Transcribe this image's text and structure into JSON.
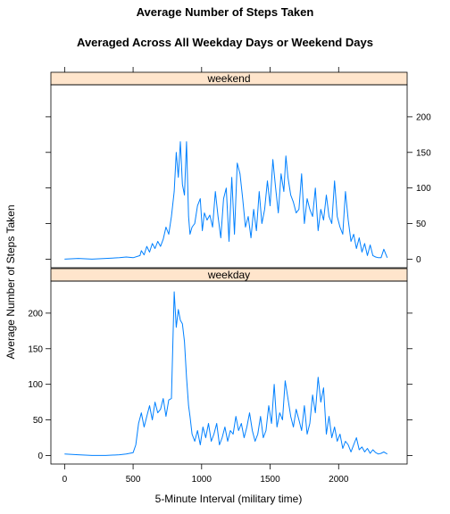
{
  "chart_data": {
    "type": "line",
    "title": "Average Number of Steps Taken",
    "subtitle": "Averaged Across All Weekday Days or Weekend Days",
    "xlabel": "5-Minute Interval (military time)",
    "ylabel": "Average Number of Steps Taken",
    "x_ticks": [
      0,
      500,
      1000,
      1500,
      2000
    ],
    "y_ticks": [
      0,
      50,
      100,
      150,
      200
    ],
    "xlim": [
      -100,
      2500
    ],
    "ylim": [
      -12,
      245
    ],
    "line_color": "#0080ff",
    "strip_color": "#ffe5cc",
    "panels": [
      {
        "name": "weekend",
        "x": [
          0,
          100,
          200,
          300,
          400,
          450,
          500,
          550,
          560,
          580,
          600,
          620,
          640,
          660,
          680,
          700,
          720,
          740,
          760,
          780,
          800,
          815,
          830,
          845,
          860,
          875,
          890,
          905,
          915,
          930,
          950,
          970,
          990,
          1005,
          1020,
          1040,
          1060,
          1080,
          1100,
          1120,
          1140,
          1160,
          1180,
          1200,
          1220,
          1240,
          1260,
          1280,
          1300,
          1320,
          1340,
          1360,
          1380,
          1400,
          1420,
          1440,
          1460,
          1480,
          1500,
          1520,
          1540,
          1560,
          1580,
          1600,
          1615,
          1630,
          1650,
          1670,
          1690,
          1710,
          1730,
          1750,
          1770,
          1790,
          1810,
          1830,
          1850,
          1870,
          1890,
          1910,
          1930,
          1950,
          1970,
          1990,
          2010,
          2030,
          2050,
          2070,
          2090,
          2110,
          2130,
          2150,
          2170,
          2190,
          2210,
          2230,
          2250,
          2270,
          2290,
          2310,
          2330,
          2355
        ],
        "y": [
          0,
          1,
          0,
          1,
          2,
          3,
          2,
          5,
          12,
          6,
          18,
          10,
          22,
          15,
          25,
          18,
          28,
          45,
          35,
          60,
          95,
          150,
          115,
          165,
          105,
          90,
          165,
          60,
          35,
          45,
          50,
          75,
          85,
          40,
          65,
          55,
          62,
          45,
          95,
          60,
          30,
          85,
          100,
          25,
          115,
          35,
          135,
          120,
          85,
          45,
          60,
          30,
          70,
          40,
          95,
          50,
          70,
          110,
          75,
          140,
          100,
          65,
          120,
          95,
          145,
          115,
          90,
          80,
          65,
          70,
          120,
          50,
          85,
          70,
          60,
          100,
          40,
          70,
          55,
          90,
          60,
          50,
          110,
          60,
          45,
          35,
          95,
          55,
          25,
          35,
          15,
          30,
          10,
          22,
          5,
          20,
          5,
          3,
          2,
          2,
          14,
          2
        ]
      },
      {
        "name": "weekday",
        "x": [
          0,
          100,
          200,
          300,
          400,
          450,
          500,
          520,
          540,
          560,
          580,
          600,
          620,
          640,
          660,
          680,
          700,
          720,
          740,
          760,
          780,
          800,
          815,
          830,
          845,
          860,
          875,
          890,
          905,
          915,
          930,
          950,
          970,
          990,
          1010,
          1030,
          1050,
          1070,
          1090,
          1110,
          1130,
          1150,
          1170,
          1190,
          1210,
          1230,
          1250,
          1270,
          1290,
          1310,
          1330,
          1350,
          1370,
          1390,
          1410,
          1430,
          1450,
          1470,
          1490,
          1510,
          1530,
          1550,
          1570,
          1590,
          1610,
          1630,
          1650,
          1670,
          1690,
          1710,
          1730,
          1750,
          1770,
          1790,
          1810,
          1830,
          1850,
          1870,
          1890,
          1910,
          1930,
          1950,
          1970,
          1990,
          2010,
          2030,
          2050,
          2070,
          2090,
          2110,
          2130,
          2150,
          2170,
          2190,
          2210,
          2230,
          2250,
          2270,
          2290,
          2310,
          2330,
          2355
        ],
        "y": [
          2,
          1,
          0,
          0,
          1,
          2,
          4,
          15,
          45,
          60,
          40,
          55,
          70,
          50,
          75,
          60,
          65,
          80,
          55,
          78,
          80,
          230,
          180,
          205,
          190,
          185,
          160,
          110,
          70,
          55,
          30,
          20,
          35,
          15,
          40,
          25,
          45,
          20,
          30,
          45,
          15,
          25,
          40,
          20,
          35,
          30,
          55,
          35,
          45,
          25,
          40,
          60,
          35,
          20,
          30,
          55,
          25,
          35,
          70,
          45,
          100,
          40,
          60,
          50,
          105,
          80,
          55,
          40,
          65,
          50,
          35,
          70,
          30,
          45,
          85,
          60,
          110,
          75,
          95,
          30,
          55,
          25,
          40,
          20,
          30,
          10,
          20,
          15,
          5,
          15,
          25,
          8,
          12,
          5,
          10,
          3,
          8,
          4,
          2,
          3,
          5,
          2
        ]
      }
    ]
  }
}
